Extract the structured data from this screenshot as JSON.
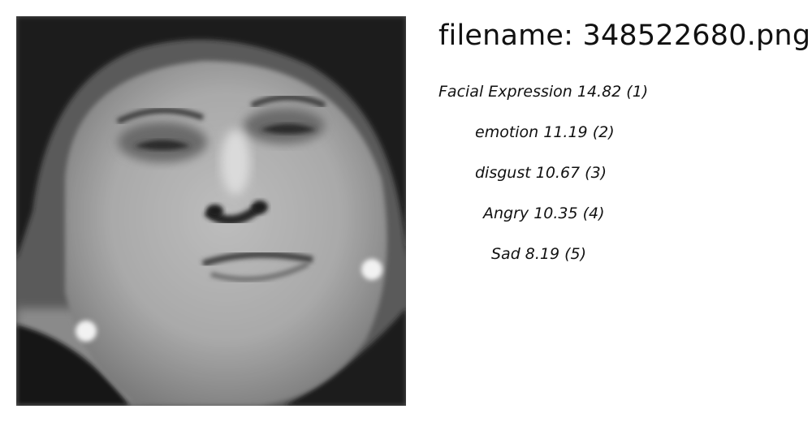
{
  "filename_text": "filename: 348522680.png",
  "labels": [
    {
      "text": "Facial Expression 14.82 (1)",
      "name": "Facial Expression",
      "score": 14.82,
      "rank": 1
    },
    {
      "text": "emotion 11.19 (2)",
      "name": "emotion",
      "score": 11.19,
      "rank": 2
    },
    {
      "text": "disgust 10.67 (3)",
      "name": "disgust",
      "score": 10.67,
      "rank": 3
    },
    {
      "text": "Angry 10.35 (4)",
      "name": "Angry",
      "score": 10.35,
      "rank": 4
    },
    {
      "text": "Sad  8.19 (5)",
      "name": "Sad",
      "score": 8.19,
      "rank": 5
    }
  ]
}
